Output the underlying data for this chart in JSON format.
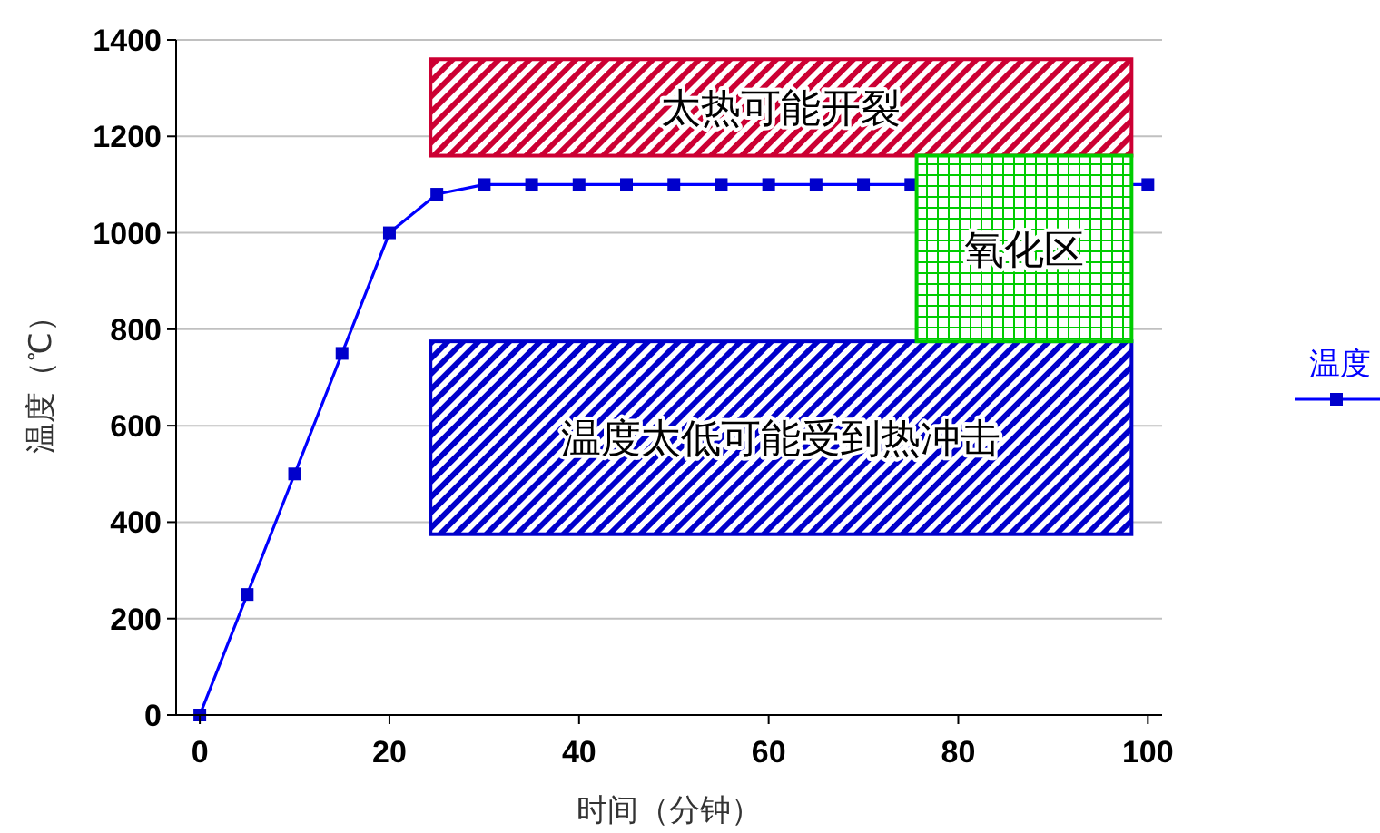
{
  "chart_data": {
    "type": "line",
    "xlabel": "时间（分钟）",
    "ylabel": "温度（℃）",
    "series": [
      {
        "name": "温度",
        "color": "#0000ff",
        "x": [
          0,
          5,
          10,
          15,
          20,
          25,
          30,
          35,
          40,
          45,
          50,
          55,
          60,
          65,
          70,
          75,
          100
        ],
        "values": [
          0,
          250,
          500,
          750,
          1000,
          1080,
          1100,
          1100,
          1100,
          1100,
          1100,
          1100,
          1100,
          1100,
          1100,
          1100,
          1100
        ]
      }
    ],
    "xlim": [
      -2.5,
      101.5
    ],
    "xticks": [
      0,
      20,
      40,
      60,
      80,
      100
    ],
    "ylim": [
      0,
      1400
    ],
    "yticks": [
      0,
      200,
      400,
      600,
      800,
      1000,
      1200,
      1400
    ],
    "grid": "y",
    "legend": "right",
    "marker": "square",
    "line_style": "solid",
    "bands": [
      {
        "axis": "y",
        "from": 375,
        "to": 775,
        "label": "温度太低可能受到热冲击",
        "color": "#0000cc"
      },
      {
        "axis": "y",
        "from": 1160,
        "to": 1360,
        "label": "太热可能开裂",
        "color": "#cc0033"
      },
      {
        "axis": "y",
        "from": 775,
        "to": 1160,
        "label": "氧化区",
        "color": "#00cc00"
      }
    ]
  }
}
